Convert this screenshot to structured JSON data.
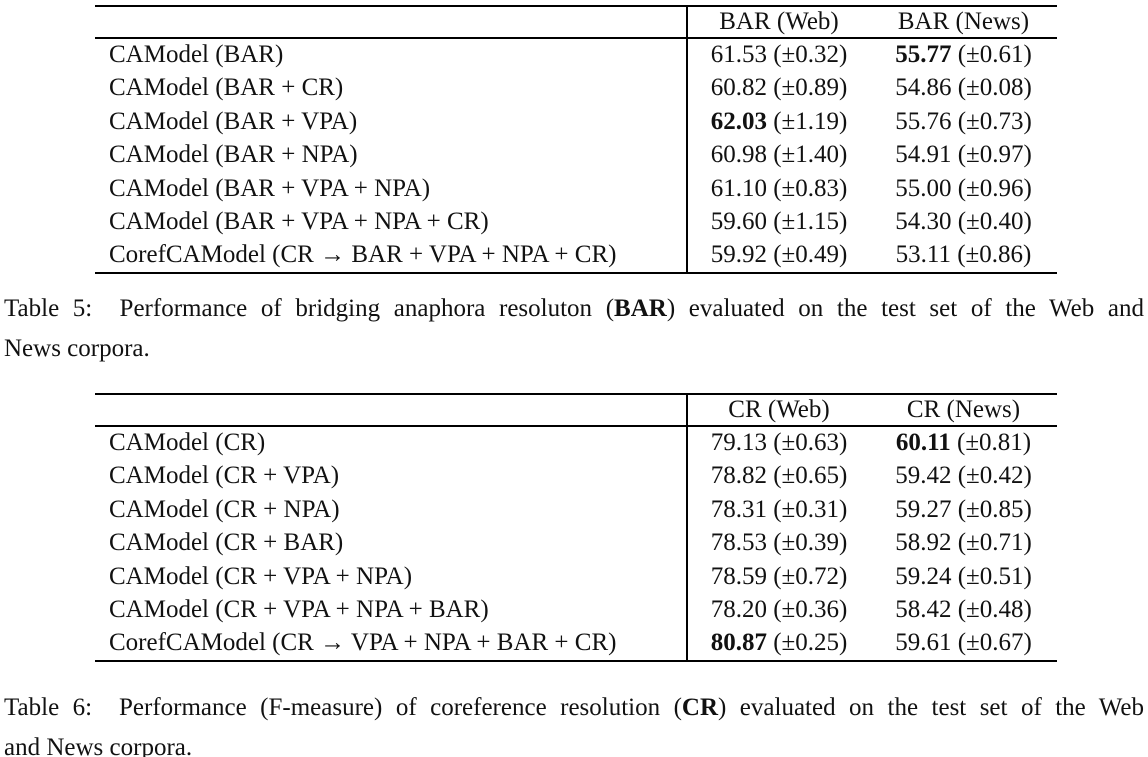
{
  "page": {
    "background_color": "#ffffff",
    "text_color": "#111111",
    "rule_color": "#000000"
  },
  "tables": [
    {
      "id": "table5",
      "columns": [
        "",
        "BAR (Web)",
        "BAR (News)"
      ],
      "rows": [
        {
          "label": "CAModel (BAR)",
          "cells": [
            {
              "value": "61.53",
              "err": "(±0.32)",
              "bold": false
            },
            {
              "value": "55.77",
              "err": "(±0.61)",
              "bold": true
            }
          ]
        },
        {
          "label": "CAModel (BAR + CR)",
          "cells": [
            {
              "value": "60.82",
              "err": "(±0.89)",
              "bold": false
            },
            {
              "value": "54.86",
              "err": "(±0.08)",
              "bold": false
            }
          ]
        },
        {
          "label": "CAModel (BAR + VPA)",
          "cells": [
            {
              "value": "62.03",
              "err": "(±1.19)",
              "bold": true
            },
            {
              "value": "55.76",
              "err": "(±0.73)",
              "bold": false
            }
          ]
        },
        {
          "label": "CAModel (BAR + NPA)",
          "cells": [
            {
              "value": "60.98",
              "err": "(±1.40)",
              "bold": false
            },
            {
              "value": "54.91",
              "err": "(±0.97)",
              "bold": false
            }
          ]
        },
        {
          "label": "CAModel (BAR + VPA + NPA)",
          "cells": [
            {
              "value": "61.10",
              "err": "(±0.83)",
              "bold": false
            },
            {
              "value": "55.00",
              "err": "(±0.96)",
              "bold": false
            }
          ]
        },
        {
          "label": "CAModel (BAR + VPA + NPA + CR)",
          "cells": [
            {
              "value": "59.60",
              "err": "(±1.15)",
              "bold": false
            },
            {
              "value": "54.30",
              "err": "(±0.40)",
              "bold": false
            }
          ]
        },
        {
          "label": "CorefCAModel (CR → BAR + VPA + NPA + CR)",
          "cells": [
            {
              "value": "59.92",
              "err": "(±0.49)",
              "bold": false
            },
            {
              "value": "53.11",
              "err": "(±0.86)",
              "bold": false
            }
          ]
        }
      ],
      "caption": {
        "line1_segments": [
          {
            "text": "Table 5:  Performance of bridging anaphora resoluton (",
            "bold": false
          },
          {
            "text": "BAR",
            "bold": true
          },
          {
            "text": ") evaluated on the test set of the Web and",
            "bold": false
          }
        ],
        "line2": "News corpora."
      }
    },
    {
      "id": "table6",
      "columns": [
        "",
        "CR (Web)",
        "CR (News)"
      ],
      "rows": [
        {
          "label": "CAModel (CR)",
          "cells": [
            {
              "value": "79.13",
              "err": "(±0.63)",
              "bold": false
            },
            {
              "value": "60.11",
              "err": "(±0.81)",
              "bold": true
            }
          ]
        },
        {
          "label": "CAModel (CR + VPA)",
          "cells": [
            {
              "value": "78.82",
              "err": "(±0.65)",
              "bold": false
            },
            {
              "value": "59.42",
              "err": "(±0.42)",
              "bold": false
            }
          ]
        },
        {
          "label": "CAModel (CR + NPA)",
          "cells": [
            {
              "value": "78.31",
              "err": "(±0.31)",
              "bold": false
            },
            {
              "value": "59.27",
              "err": "(±0.85)",
              "bold": false
            }
          ]
        },
        {
          "label": "CAModel (CR + BAR)",
          "cells": [
            {
              "value": "78.53",
              "err": "(±0.39)",
              "bold": false
            },
            {
              "value": "58.92",
              "err": "(±0.71)",
              "bold": false
            }
          ]
        },
        {
          "label": "CAModel (CR + VPA + NPA)",
          "cells": [
            {
              "value": "78.59",
              "err": "(±0.72)",
              "bold": false
            },
            {
              "value": "59.24",
              "err": "(±0.51)",
              "bold": false
            }
          ]
        },
        {
          "label": "CAModel (CR + VPA + NPA + BAR)",
          "cells": [
            {
              "value": "78.20",
              "err": "(±0.36)",
              "bold": false
            },
            {
              "value": "58.42",
              "err": "(±0.48)",
              "bold": false
            }
          ]
        },
        {
          "label": "CorefCAModel (CR → VPA + NPA + BAR + CR)",
          "cells": [
            {
              "value": "80.87",
              "err": "(±0.25)",
              "bold": true
            },
            {
              "value": "59.61",
              "err": "(±0.67)",
              "bold": false
            }
          ]
        }
      ],
      "caption": {
        "line1_segments": [
          {
            "text": "Table 6:  Performance (F-measure) of coreference resolution (",
            "bold": false
          },
          {
            "text": "CR",
            "bold": true
          },
          {
            "text": ") evaluated on the test set of the Web",
            "bold": false
          }
        ],
        "line2": "and News corpora."
      }
    }
  ]
}
